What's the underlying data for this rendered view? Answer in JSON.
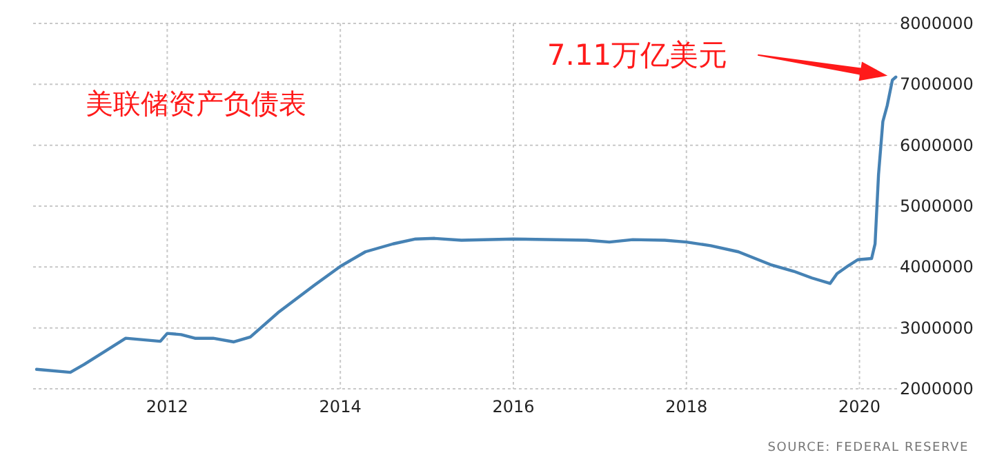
{
  "chart_data": {
    "type": "line",
    "title": "美联储资产负债表",
    "x": [
      2010.49,
      2010.88,
      2011.04,
      2011.52,
      2011.92,
      2012.0,
      2012.16,
      2012.32,
      2012.53,
      2012.77,
      2012.96,
      2013.28,
      2013.7,
      2014.0,
      2014.29,
      2014.61,
      2014.87,
      2015.09,
      2015.4,
      2016.0,
      2016.85,
      2017.11,
      2017.38,
      2017.75,
      2018.0,
      2018.28,
      2018.6,
      2018.97,
      2019.24,
      2019.45,
      2019.66,
      2019.74,
      2019.87,
      2019.98,
      2020.14,
      2020.18,
      2020.22,
      2020.27,
      2020.32,
      2020.38,
      2020.42
    ],
    "series": [
      {
        "color": "#4682b4",
        "values": [
          2320000,
          2270000,
          2400000,
          2830000,
          2780000,
          2910000,
          2890000,
          2830000,
          2830000,
          2770000,
          2850000,
          3250000,
          3700000,
          4010000,
          4250000,
          4380000,
          4460000,
          4470000,
          4440000,
          4460000,
          4440000,
          4410000,
          4450000,
          4440000,
          4410000,
          4350000,
          4250000,
          4040000,
          3930000,
          3820000,
          3730000,
          3890000,
          4020000,
          4120000,
          4140000,
          4380000,
          5520000,
          6390000,
          6650000,
          7070000,
          7120000
        ]
      }
    ],
    "xlim": [
      2010.45,
      2020.45
    ],
    "xticks": [
      2012,
      2014,
      2016,
      2018,
      2020
    ],
    "ylim": [
      2000000,
      8000000
    ],
    "yticks": [
      2000000,
      3000000,
      4000000,
      5000000,
      6000000,
      7000000,
      8000000
    ],
    "grid": true,
    "annotations": [
      "7.11万亿美元",
      "SOURCE: FEDERAL RESERVE"
    ]
  }
}
